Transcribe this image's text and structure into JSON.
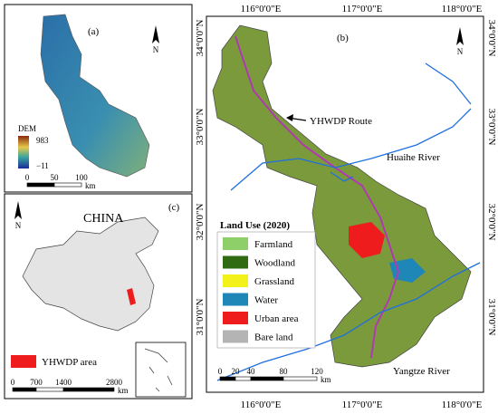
{
  "panel_a": {
    "label": "(a)",
    "north": "N",
    "legend_title": "DEM",
    "legend_max": "983",
    "legend_min": "−11",
    "scale_ticks": [
      "0",
      "50",
      "100"
    ],
    "scale_unit": "km"
  },
  "panel_b": {
    "label": "(b)",
    "north": "N",
    "route_label": "YHWDP Route",
    "huaihe": "Huaihe River",
    "yangtze": "Yangtze River",
    "legend": {
      "title": "Land Use (2020)",
      "items": [
        {
          "name": "Farmland",
          "color": "#8fcf6a"
        },
        {
          "name": "Woodland",
          "color": "#2e6b12"
        },
        {
          "name": "Grassland",
          "color": "#f2f21a"
        },
        {
          "name": "Water",
          "color": "#1f86b8"
        },
        {
          "name": "Urban area",
          "color": "#ee1c1c"
        },
        {
          "name": "Bare land",
          "color": "#b4b4b4"
        }
      ]
    },
    "scale_ticks": [
      "0",
      "20",
      "40",
      "80",
      "120"
    ],
    "scale_unit": "km",
    "lon_labels": [
      "116°0'0\"E",
      "117°0'0\"E",
      "118°0'0\"E"
    ],
    "lat_labels": [
      "34°0'0\"N",
      "33°0'0\"N",
      "32°0'0\"N",
      "31°0'0\"N"
    ]
  },
  "panel_c": {
    "label": "(c)",
    "north": "N",
    "title": "CHINA",
    "legend_item": "YHWDP area",
    "scale_ticks": [
      "0",
      "700",
      "1400",
      "2800"
    ],
    "scale_unit": "km"
  }
}
